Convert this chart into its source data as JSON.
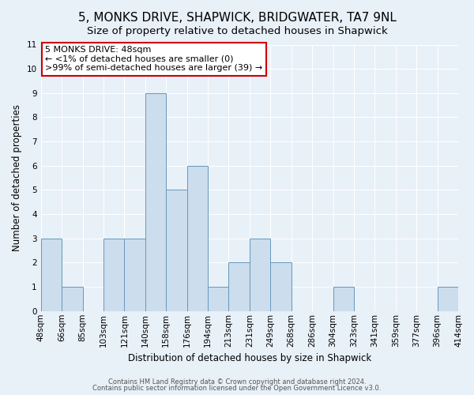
{
  "title": "5, MONKS DRIVE, SHAPWICK, BRIDGWATER, TA7 9NL",
  "subtitle": "Size of property relative to detached houses in Shapwick",
  "xlabel": "Distribution of detached houses by size in Shapwick",
  "ylabel": "Number of detached properties",
  "bin_labels": [
    "48sqm",
    "66sqm",
    "85sqm",
    "103sqm",
    "121sqm",
    "140sqm",
    "158sqm",
    "176sqm",
    "194sqm",
    "213sqm",
    "231sqm",
    "249sqm",
    "268sqm",
    "286sqm",
    "304sqm",
    "323sqm",
    "341sqm",
    "359sqm",
    "377sqm",
    "396sqm",
    "414sqm"
  ],
  "bar_heights": [
    3,
    1,
    0,
    3,
    3,
    9,
    5,
    6,
    1,
    2,
    3,
    2,
    0,
    0,
    1,
    0,
    0,
    0,
    0,
    1
  ],
  "bar_color": "#ccdded",
  "bar_edge_color": "#6699bb",
  "ylim": [
    0,
    11
  ],
  "yticks": [
    0,
    1,
    2,
    3,
    4,
    5,
    6,
    7,
    8,
    9,
    10,
    11
  ],
  "bg_color": "#e8f0f8",
  "annotation_text": "5 MONKS DRIVE: 48sqm\n← <1% of detached houses are smaller (0)\n>99% of semi-detached houses are larger (39) →",
  "annotation_box_edge_color": "#cc0000",
  "footer_line1": "Contains HM Land Registry data © Crown copyright and database right 2024.",
  "footer_line2": "Contains public sector information licensed under the Open Government Licence v3.0.",
  "title_fontsize": 11,
  "subtitle_fontsize": 9.5,
  "tick_fontsize": 7.5,
  "ylabel_fontsize": 8.5,
  "xlabel_fontsize": 8.5,
  "annotation_fontsize": 8,
  "footer_fontsize": 6
}
